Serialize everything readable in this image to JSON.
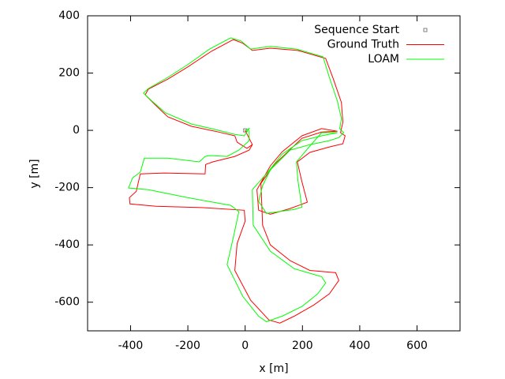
{
  "chart_data": {
    "type": "line",
    "xlabel": "x [m]",
    "ylabel": "y [m]",
    "xlim": [
      -550,
      750
    ],
    "ylim": [
      -700,
      400
    ],
    "xticks": [
      -400,
      -200,
      0,
      200,
      400,
      600
    ],
    "yticks": [
      -600,
      -400,
      -200,
      0,
      200,
      400
    ],
    "legend": "upper right",
    "series": [
      {
        "name": "Sequence Start",
        "color": "#808080",
        "style": "points",
        "x": [
          0
        ],
        "y": [
          0
        ]
      },
      {
        "name": "Ground Truth",
        "color": "#ff0000",
        "style": "lines",
        "x": [
          0,
          14,
          25,
          6,
          -28,
          -36,
          -105,
          -187,
          -270,
          -316,
          -349,
          -338,
          -270,
          -201,
          -118,
          -41,
          -8,
          25,
          88,
          184,
          281,
          308,
          336,
          341,
          333,
          349,
          341,
          294,
          226,
          182,
          198,
          217,
          157,
          88,
          47,
          41,
          88,
          129,
          198,
          267,
          322,
          267,
          198,
          102,
          55,
          61,
          88,
          157,
          226,
          316,
          327,
          294,
          239,
          171,
          121,
          83,
          19,
          -36,
          -28,
          0,
          -3,
          -146,
          -311,
          -402,
          -404,
          -380,
          -366,
          -283,
          -140,
          -138,
          -113,
          -36,
          14,
          25
        ],
        "y": [
          0,
          -28,
          -50,
          -63,
          -41,
          -19,
          -3,
          14,
          47,
          91,
          124,
          144,
          179,
          221,
          276,
          317,
          304,
          279,
          287,
          279,
          251,
          179,
          97,
          28,
          -8,
          -19,
          -47,
          -58,
          -77,
          -110,
          -179,
          -251,
          -273,
          -293,
          -279,
          -207,
          -124,
          -75,
          -19,
          6,
          -3,
          -6,
          -28,
          -119,
          -185,
          -331,
          -400,
          -455,
          -489,
          -497,
          -524,
          -571,
          -610,
          -649,
          -673,
          -662,
          -593,
          -489,
          -395,
          -317,
          -279,
          -270,
          -265,
          -257,
          -235,
          -213,
          -152,
          -149,
          -152,
          -119,
          -110,
          -91,
          -69,
          -50
        ]
      },
      {
        "name": "LOAM",
        "color": "#00ff00",
        "style": "lines",
        "x": [
          0,
          14,
          -3,
          -36,
          -105,
          -187,
          -278,
          -325,
          -355,
          -338,
          -270,
          -201,
          -124,
          -50,
          -14,
          19,
          88,
          179,
          272,
          294,
          322,
          336,
          330,
          344,
          327,
          294,
          226,
          157,
          88,
          61,
          47,
          74,
          171,
          198,
          184,
          179,
          226,
          267,
          322,
          267,
          198,
          129,
          74,
          25,
          28,
          88,
          171,
          267,
          281,
          253,
          198,
          129,
          74,
          47,
          -8,
          -63,
          -41,
          -22,
          -50,
          -201,
          -338,
          -407,
          -393,
          -366,
          -352,
          -270,
          -160,
          -140,
          -124,
          -63,
          -22,
          14,
          14
        ],
        "y": [
          0,
          6,
          -19,
          -14,
          3,
          22,
          61,
          102,
          130,
          146,
          185,
          229,
          284,
          323,
          312,
          284,
          293,
          284,
          257,
          185,
          102,
          41,
          6,
          -8,
          -25,
          -36,
          -50,
          -69,
          -138,
          -193,
          -248,
          -290,
          -276,
          -268,
          -174,
          -110,
          -55,
          -8,
          -8,
          -19,
          -36,
          -83,
          -152,
          -207,
          -331,
          -422,
          -483,
          -511,
          -533,
          -571,
          -615,
          -649,
          -668,
          -649,
          -580,
          -469,
          -373,
          -284,
          -262,
          -235,
          -207,
          -201,
          -166,
          -146,
          -97,
          -97,
          -110,
          -91,
          -88,
          -91,
          -69,
          -36,
          0
        ]
      }
    ]
  }
}
